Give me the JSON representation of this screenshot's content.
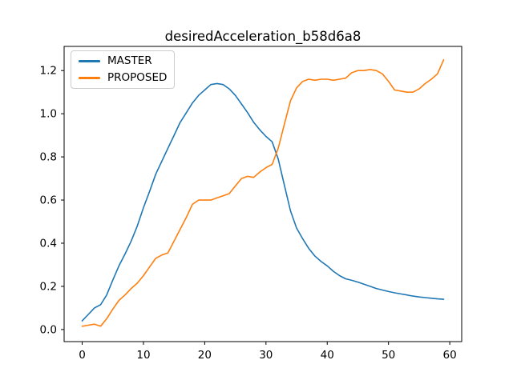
{
  "chart_data": {
    "type": "line",
    "title": "desiredAcceleration_b58d6a8",
    "xlabel": "",
    "ylabel": "",
    "grid": false,
    "legend_position": "upper-left",
    "xlim": [
      -2.95,
      61.95
    ],
    "ylim": [
      -0.056,
      1.312
    ],
    "xticks": {
      "values": [
        0,
        10,
        20,
        30,
        40,
        50,
        60
      ],
      "labels": [
        "0",
        "10",
        "20",
        "30",
        "40",
        "50",
        "60"
      ]
    },
    "yticks": {
      "values": [
        0.0,
        0.2,
        0.4,
        0.6,
        0.8,
        1.0,
        1.2
      ],
      "labels": [
        "0.0",
        "0.2",
        "0.4",
        "0.6",
        "0.8",
        "1.0",
        "1.2"
      ]
    },
    "x": [
      0,
      1,
      2,
      3,
      4,
      5,
      6,
      7,
      8,
      9,
      10,
      11,
      12,
      13,
      14,
      15,
      16,
      17,
      18,
      19,
      20,
      21,
      22,
      23,
      24,
      25,
      26,
      27,
      28,
      29,
      30,
      31,
      32,
      33,
      34,
      35,
      36,
      37,
      38,
      39,
      40,
      41,
      42,
      43,
      44,
      45,
      46,
      47,
      48,
      49,
      50,
      51,
      52,
      53,
      54,
      55,
      56,
      57,
      58,
      59
    ],
    "series": [
      {
        "name": "MASTER",
        "color": "#1f77b4",
        "values": [
          0.04,
          0.07,
          0.1,
          0.115,
          0.16,
          0.23,
          0.295,
          0.35,
          0.41,
          0.48,
          0.565,
          0.64,
          0.72,
          0.78,
          0.84,
          0.9,
          0.96,
          1.005,
          1.05,
          1.085,
          1.11,
          1.135,
          1.14,
          1.135,
          1.115,
          1.085,
          1.045,
          1.005,
          0.96,
          0.925,
          0.895,
          0.87,
          0.79,
          0.67,
          0.55,
          0.47,
          0.42,
          0.375,
          0.34,
          0.315,
          0.295,
          0.27,
          0.25,
          0.235,
          0.228,
          0.22,
          0.21,
          0.2,
          0.19,
          0.183,
          0.176,
          0.17,
          0.165,
          0.16,
          0.155,
          0.151,
          0.148,
          0.145,
          0.142,
          0.14
        ]
      },
      {
        "name": "PROPOSED",
        "color": "#ff7f0e",
        "values": [
          0.015,
          0.02,
          0.025,
          0.015,
          0.05,
          0.095,
          0.135,
          0.16,
          0.19,
          0.215,
          0.25,
          0.29,
          0.33,
          0.345,
          0.355,
          0.41,
          0.465,
          0.52,
          0.58,
          0.6,
          0.6,
          0.6,
          0.61,
          0.62,
          0.63,
          0.665,
          0.7,
          0.71,
          0.705,
          0.73,
          0.75,
          0.765,
          0.84,
          0.95,
          1.06,
          1.12,
          1.15,
          1.16,
          1.155,
          1.16,
          1.16,
          1.155,
          1.16,
          1.165,
          1.19,
          1.2,
          1.2,
          1.205,
          1.2,
          1.185,
          1.15,
          1.11,
          1.105,
          1.1,
          1.1,
          1.115,
          1.14,
          1.16,
          1.185,
          1.25
        ]
      }
    ]
  }
}
